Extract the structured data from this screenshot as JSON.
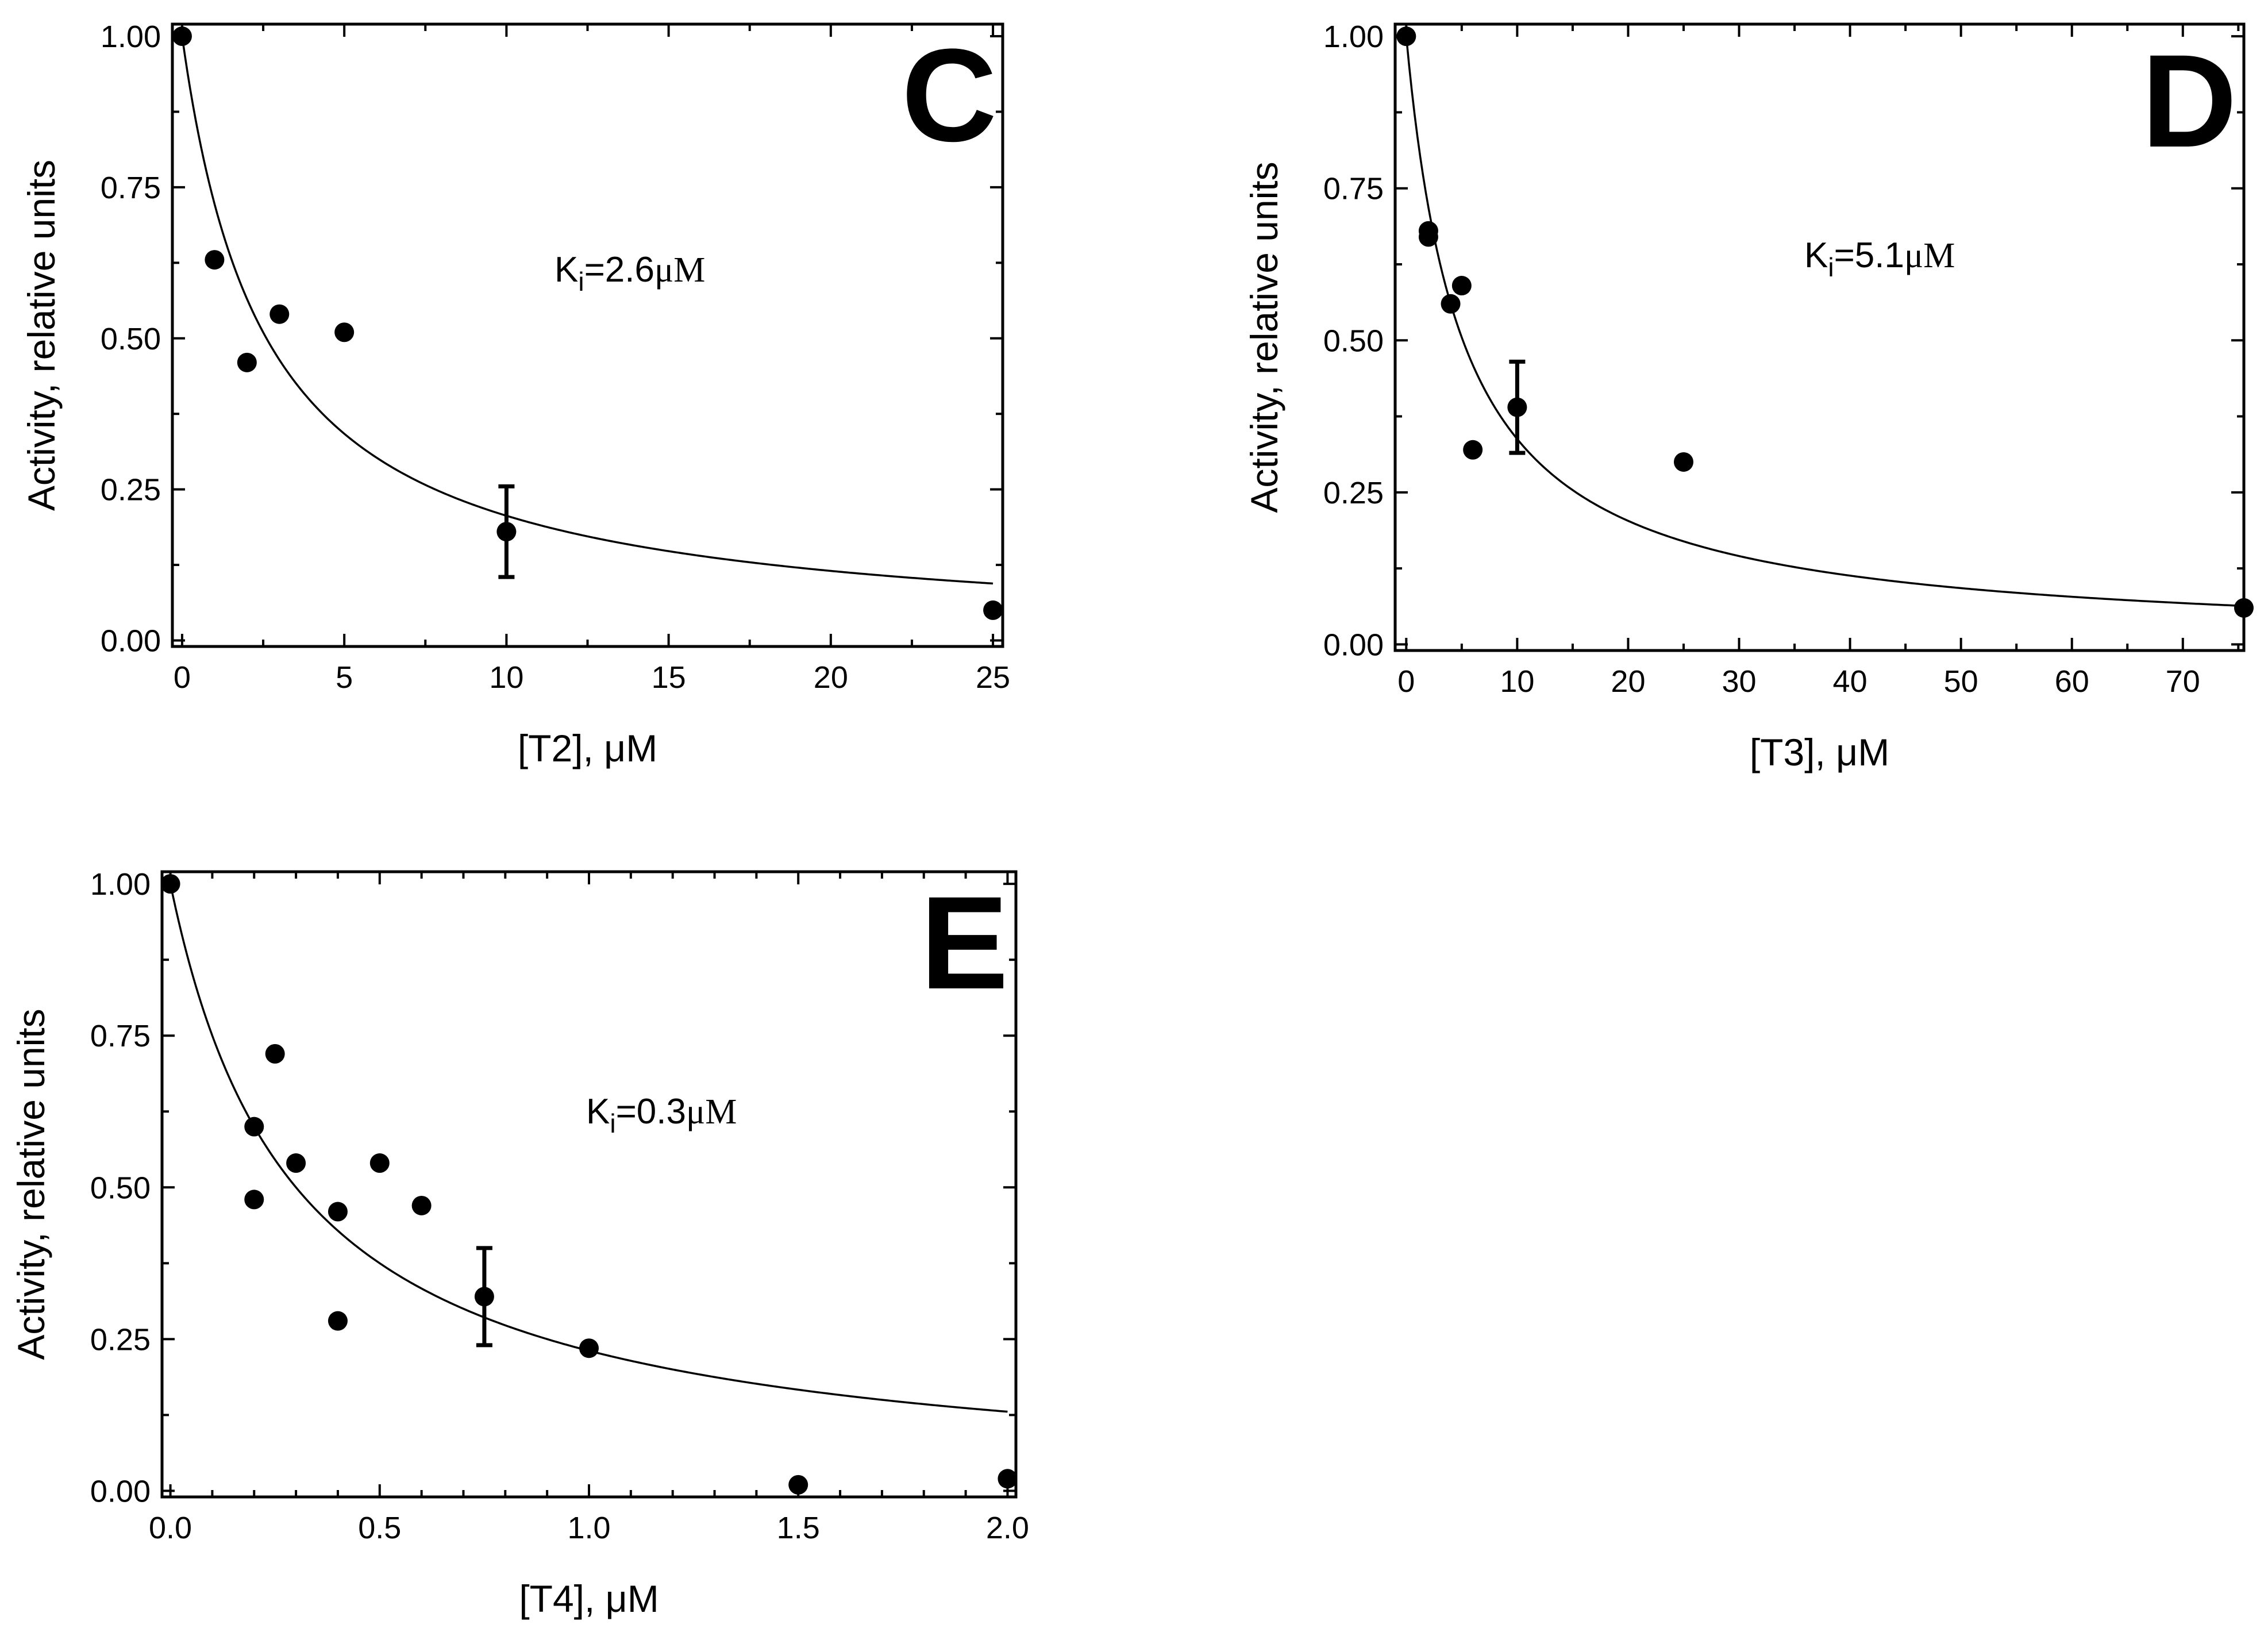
{
  "chart_data": [
    {
      "type": "scatter",
      "panel_label": "C",
      "xlabel": "[T2], μM",
      "ylabel": "Activity, relative units",
      "xlim": [
        -0.3,
        25.3
      ],
      "ylim": [
        -0.01,
        1.02
      ],
      "xticks": [
        0,
        5,
        10,
        15,
        20,
        25
      ],
      "xtick_labels": [
        "0",
        "5",
        "10",
        "15",
        "20",
        "25"
      ],
      "yticks": [
        0,
        0.25,
        0.5,
        0.75,
        1.0
      ],
      "ytick_labels": [
        "0.00",
        "0.25",
        "0.50",
        "0.75",
        "1.00"
      ],
      "x_minor_step": 2.5,
      "y_minor_step": 0.125,
      "annotation": {
        "prefix": "K",
        "subscript": "i",
        "equals": "=2.6",
        "unit": "μM"
      },
      "ki": 2.6,
      "fit_xmax": 25,
      "points": [
        {
          "x": 0,
          "y": 1.0
        },
        {
          "x": 1,
          "y": 0.63
        },
        {
          "x": 2,
          "y": 0.46
        },
        {
          "x": 3,
          "y": 0.54
        },
        {
          "x": 5,
          "y": 0.51
        },
        {
          "x": 10,
          "y": 0.18,
          "err": 0.075
        },
        {
          "x": 25,
          "y": 0.05
        }
      ]
    },
    {
      "type": "scatter",
      "panel_label": "D",
      "xlabel": "[T3], μM",
      "ylabel": "Activity, relative units",
      "xlim": [
        -1,
        75.5
      ],
      "ylim": [
        -0.01,
        1.02
      ],
      "xticks": [
        0,
        10,
        20,
        30,
        40,
        50,
        60,
        70
      ],
      "xtick_labels": [
        "0",
        "10",
        "20",
        "30",
        "40",
        "50",
        "60",
        "70"
      ],
      "yticks": [
        0,
        0.25,
        0.5,
        0.75,
        1.0
      ],
      "ytick_labels": [
        "0.00",
        "0.25",
        "0.50",
        "0.75",
        "1.00"
      ],
      "x_minor_step": 5,
      "y_minor_step": 0.125,
      "annotation": {
        "prefix": "K",
        "subscript": "i",
        "equals": "=5.1",
        "unit": "μM"
      },
      "ki": 5.1,
      "fit_xmax": 75.5,
      "points": [
        {
          "x": 0,
          "y": 1.0
        },
        {
          "x": 2,
          "y": 0.68
        },
        {
          "x": 2,
          "y": 0.67
        },
        {
          "x": 4,
          "y": 0.56
        },
        {
          "x": 5,
          "y": 0.59
        },
        {
          "x": 6,
          "y": 0.32
        },
        {
          "x": 10,
          "y": 0.39,
          "err": 0.075
        },
        {
          "x": 25,
          "y": 0.3
        },
        {
          "x": 75.5,
          "y": 0.06
        }
      ]
    },
    {
      "type": "scatter",
      "panel_label": "E",
      "xlabel": "[T4], μM",
      "ylabel": "Activity, relative units",
      "xlim": [
        -0.02,
        2.02
      ],
      "ylim": [
        -0.01,
        1.02
      ],
      "xticks": [
        0,
        0.5,
        1.0,
        1.5,
        2.0
      ],
      "xtick_labels": [
        "0.0",
        "0.5",
        "1.0",
        "1.5",
        "2.0"
      ],
      "yticks": [
        0,
        0.25,
        0.5,
        0.75,
        1.0
      ],
      "ytick_labels": [
        "0.00",
        "0.25",
        "0.50",
        "0.75",
        "1.00"
      ],
      "x_minor_step": 0.1,
      "y_minor_step": 0.125,
      "annotation": {
        "prefix": "K",
        "subscript": "i",
        "equals": "=0.3",
        "unit": "μM"
      },
      "ki": 0.3,
      "fit_xmax": 2.0,
      "points": [
        {
          "x": 0,
          "y": 1.0
        },
        {
          "x": 0.2,
          "y": 0.6
        },
        {
          "x": 0.2,
          "y": 0.48
        },
        {
          "x": 0.25,
          "y": 0.72
        },
        {
          "x": 0.3,
          "y": 0.54
        },
        {
          "x": 0.4,
          "y": 0.46
        },
        {
          "x": 0.4,
          "y": 0.28
        },
        {
          "x": 0.5,
          "y": 0.54
        },
        {
          "x": 0.6,
          "y": 0.47
        },
        {
          "x": 0.75,
          "y": 0.32,
          "err": 0.08
        },
        {
          "x": 1.0,
          "y": 0.235
        },
        {
          "x": 1.5,
          "y": 0.01
        },
        {
          "x": 2.0,
          "y": 0.02
        }
      ]
    }
  ]
}
